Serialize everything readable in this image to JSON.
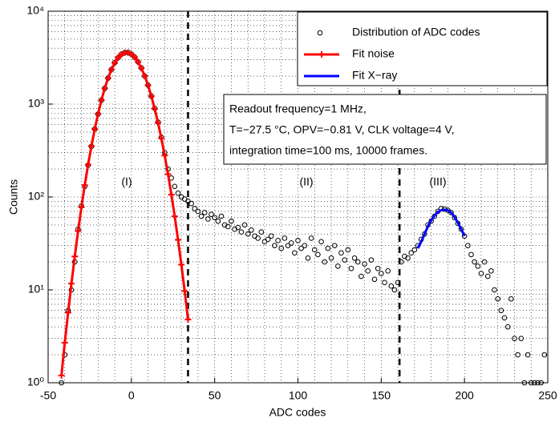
{
  "chart_data": {
    "type": "scatter",
    "xlabel": "ADC codes",
    "ylabel": "Counts",
    "xlim": [
      -50,
      250
    ],
    "ylim": [
      1,
      10000
    ],
    "yscale": "log",
    "xticks": [
      -50,
      0,
      50,
      100,
      150,
      200,
      250
    ],
    "yticks": [
      {
        "value": 1,
        "label": "10⁰"
      },
      {
        "value": 10,
        "label": "10¹"
      },
      {
        "value": 100,
        "label": "10²"
      },
      {
        "value": 1000,
        "label": "10³"
      },
      {
        "value": 10000,
        "label": "10⁴"
      }
    ],
    "grid": true,
    "minor_grid": true,
    "legend": "top-right",
    "series": [
      {
        "name": "Distribution of ADC codes",
        "kind": "scatter",
        "color": "#000000",
        "x": [
          -42,
          -40,
          -38,
          -36,
          -34,
          -32,
          -30,
          -28,
          -26,
          -24,
          -22,
          -20,
          -18,
          -16,
          -14,
          -12,
          -10,
          -8,
          -6,
          -4,
          -2,
          0,
          2,
          4,
          6,
          8,
          10,
          12,
          14,
          16,
          18,
          20,
          22,
          24,
          26,
          28,
          30,
          32,
          34,
          36,
          38,
          40,
          42,
          44,
          46,
          48,
          50,
          52,
          54,
          56,
          58,
          60,
          62,
          64,
          66,
          68,
          70,
          72,
          74,
          76,
          78,
          80,
          82,
          84,
          86,
          88,
          90,
          92,
          94,
          96,
          98,
          100,
          102,
          104,
          106,
          108,
          110,
          112,
          114,
          116,
          118,
          120,
          122,
          124,
          126,
          128,
          130,
          132,
          134,
          136,
          138,
          140,
          142,
          144,
          146,
          148,
          150,
          152,
          154,
          156,
          158,
          160,
          162,
          164,
          166,
          168,
          170,
          172,
          174,
          176,
          178,
          180,
          182,
          184,
          186,
          188,
          190,
          192,
          194,
          196,
          198,
          200,
          202,
          204,
          206,
          208,
          210,
          212,
          214,
          216,
          218,
          220,
          222,
          224,
          226,
          228,
          230,
          232,
          234,
          236,
          238,
          240,
          242,
          244,
          246,
          248
        ],
        "values": [
          1,
          2,
          6,
          10,
          20,
          45,
          80,
          130,
          220,
          350,
          540,
          780,
          1100,
          1480,
          1900,
          2350,
          2800,
          3150,
          3450,
          3580,
          3600,
          3450,
          3200,
          2850,
          2450,
          2000,
          1600,
          1220,
          900,
          640,
          440,
          300,
          200,
          160,
          130,
          110,
          100,
          95,
          90,
          85,
          75,
          70,
          62,
          68,
          58,
          65,
          60,
          55,
          62,
          50,
          48,
          55,
          45,
          47,
          42,
          50,
          40,
          44,
          38,
          36,
          42,
          33,
          35,
          38,
          30,
          34,
          28,
          36,
          30,
          32,
          25,
          34,
          28,
          30,
          22,
          36,
          27,
          24,
          33,
          20,
          28,
          22,
          30,
          18,
          25,
          21,
          27,
          17,
          22,
          20,
          14,
          19,
          16,
          21,
          13,
          17,
          15,
          12,
          16,
          11,
          10,
          12,
          20,
          23,
          22,
          25,
          27,
          30,
          35,
          40,
          50,
          55,
          62,
          70,
          75,
          74,
          72,
          68,
          60,
          52,
          45,
          38,
          30,
          24,
          20,
          18,
          15,
          20,
          14,
          16,
          10,
          8,
          6,
          5,
          4,
          8,
          3,
          2,
          3,
          1,
          2,
          1,
          1,
          1,
          1,
          2
        ]
      },
      {
        "name": "Fit noise",
        "kind": "line-plus",
        "color": "#ff0000",
        "x": [
          -42,
          -40,
          -38,
          -36,
          -34,
          -32,
          -30,
          -28,
          -26,
          -24,
          -22,
          -20,
          -18,
          -16,
          -14,
          -12,
          -10,
          -8,
          -6,
          -4,
          -2,
          0,
          2,
          4,
          6,
          8,
          10,
          12,
          14,
          16,
          18,
          20,
          22,
          24,
          26,
          28,
          30,
          32,
          34
        ],
        "values": [
          1.2,
          2.7,
          5.7,
          11.7,
          22.9,
          43,
          77.6,
          134,
          223,
          353,
          539,
          787,
          1101,
          1480,
          1904,
          2351,
          2782,
          3157,
          3434,
          3581,
          3583,
          3447,
          3190,
          2841,
          2434,
          2006,
          1591,
          1214,
          891,
          629,
          428,
          279,
          176,
          106,
          62,
          34.6,
          18.7,
          9.7,
          4.8
        ]
      },
      {
        "name": "Fit X−ray",
        "kind": "line",
        "color": "#0000ff",
        "x": [
          172,
          174,
          176,
          178,
          180,
          182,
          184,
          186,
          188,
          190,
          192,
          194,
          196,
          198,
          200
        ],
        "values": [
          28,
          33,
          40,
          48,
          56,
          63,
          69,
          72,
          73,
          72,
          68,
          61,
          53,
          45,
          38
        ]
      }
    ],
    "vlines": [
      34,
      161
    ],
    "annotations": [
      "(I)",
      "(II)",
      "(III)"
    ],
    "textbox": [
      "Readout frequency=1 MHz,",
      "T=−27.5 °C, OPV=−0.81 V, CLK voltage=4 V,",
      "integration time=100 ms, 10000 frames."
    ]
  }
}
